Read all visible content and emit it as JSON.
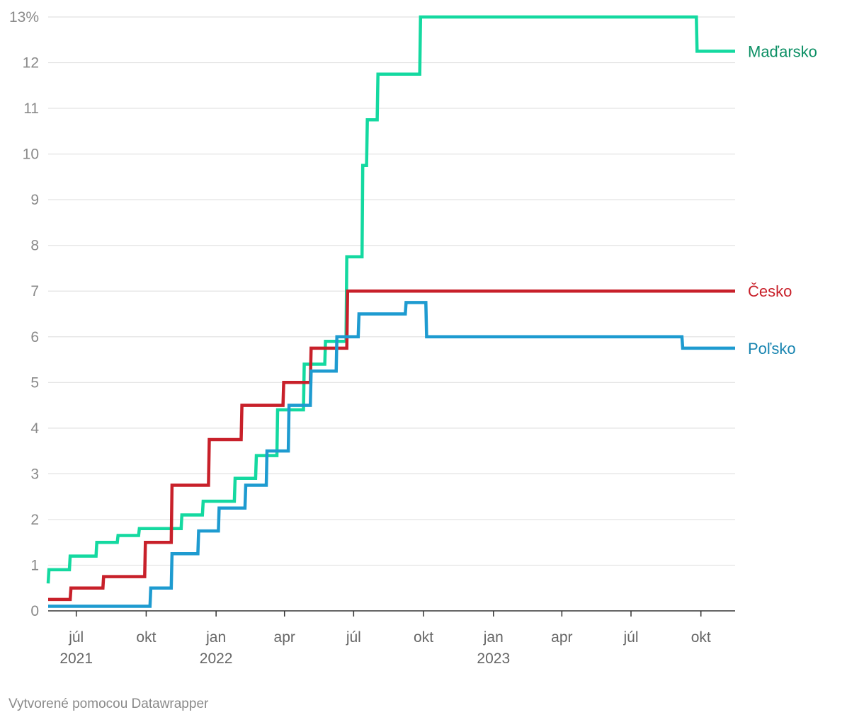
{
  "chart_data": {
    "type": "line",
    "step": true,
    "title": "",
    "xlabel": "",
    "ylabel": "",
    "y_unit_suffix": "%",
    "ylim": [
      0,
      13
    ],
    "yticks": [
      0,
      1,
      2,
      3,
      4,
      5,
      6,
      7,
      8,
      9,
      10,
      11,
      12,
      13
    ],
    "xlim": [
      "2021-05-25",
      "2023-11-15"
    ],
    "xticks": [
      {
        "date": "2021-07-01",
        "label": "júl",
        "year": "2021"
      },
      {
        "date": "2021-10-01",
        "label": "okt",
        "year": ""
      },
      {
        "date": "2022-01-01",
        "label": "jan",
        "year": "2022"
      },
      {
        "date": "2022-04-01",
        "label": "apr",
        "year": ""
      },
      {
        "date": "2022-07-01",
        "label": "júl",
        "year": ""
      },
      {
        "date": "2022-10-01",
        "label": "okt",
        "year": ""
      },
      {
        "date": "2023-01-01",
        "label": "jan",
        "year": "2023"
      },
      {
        "date": "2023-04-01",
        "label": "apr",
        "year": ""
      },
      {
        "date": "2023-07-01",
        "label": "júl",
        "year": ""
      },
      {
        "date": "2023-10-01",
        "label": "okt",
        "year": ""
      }
    ],
    "series": [
      {
        "name": "Maďarsko",
        "color": "#14d9a0",
        "label_color": "#0b8f64",
        "points": [
          [
            "2021-05-25",
            0.6
          ],
          [
            "2021-05-26",
            0.9
          ],
          [
            "2021-06-22",
            0.9
          ],
          [
            "2021-06-23",
            1.2
          ],
          [
            "2021-07-27",
            1.2
          ],
          [
            "2021-07-28",
            1.5
          ],
          [
            "2021-08-24",
            1.5
          ],
          [
            "2021-08-25",
            1.65
          ],
          [
            "2021-09-21",
            1.65
          ],
          [
            "2021-09-22",
            1.8
          ],
          [
            "2021-10-19",
            1.8
          ],
          [
            "2021-11-16",
            1.8
          ],
          [
            "2021-11-17",
            2.1
          ],
          [
            "2021-12-14",
            2.1
          ],
          [
            "2021-12-15",
            2.4
          ],
          [
            "2022-01-25",
            2.4
          ],
          [
            "2022-01-26",
            2.9
          ],
          [
            "2022-02-22",
            2.9
          ],
          [
            "2022-02-23",
            3.4
          ],
          [
            "2022-03-22",
            3.4
          ],
          [
            "2022-03-23",
            4.4
          ],
          [
            "2022-04-26",
            4.4
          ],
          [
            "2022-04-27",
            5.4
          ],
          [
            "2022-05-24",
            5.4
          ],
          [
            "2022-05-25",
            5.9
          ],
          [
            "2022-06-21",
            5.9
          ],
          [
            "2022-06-22",
            7.75
          ],
          [
            "2022-07-12",
            7.75
          ],
          [
            "2022-07-13",
            9.75
          ],
          [
            "2022-07-18",
            9.75
          ],
          [
            "2022-07-19",
            10.75
          ],
          [
            "2022-08-01",
            10.75
          ],
          [
            "2022-08-02",
            11.75
          ],
          [
            "2022-09-26",
            11.75
          ],
          [
            "2022-09-27",
            13.0
          ],
          [
            "2023-09-25",
            13.0
          ],
          [
            "2023-09-26",
            12.25
          ],
          [
            "2023-11-15",
            12.25
          ]
        ]
      },
      {
        "name": "Česko",
        "color": "#c8202a",
        "label_color": "#c8202a",
        "points": [
          [
            "2021-05-25",
            0.25
          ],
          [
            "2021-06-23",
            0.25
          ],
          [
            "2021-06-24",
            0.5
          ],
          [
            "2021-08-05",
            0.5
          ],
          [
            "2021-08-06",
            0.75
          ],
          [
            "2021-09-29",
            0.75
          ],
          [
            "2021-09-30",
            1.5
          ],
          [
            "2021-11-03",
            1.5
          ],
          [
            "2021-11-04",
            2.75
          ],
          [
            "2021-12-22",
            2.75
          ],
          [
            "2021-12-23",
            3.75
          ],
          [
            "2022-02-03",
            3.75
          ],
          [
            "2022-02-04",
            4.5
          ],
          [
            "2022-03-30",
            4.5
          ],
          [
            "2022-03-31",
            5.0
          ],
          [
            "2022-05-05",
            5.0
          ],
          [
            "2022-05-06",
            5.75
          ],
          [
            "2022-06-22",
            5.75
          ],
          [
            "2022-06-23",
            7.0
          ],
          [
            "2023-11-15",
            7.0
          ]
        ]
      },
      {
        "name": "Poľsko",
        "color": "#1e9bd0",
        "label_color": "#1784b0",
        "points": [
          [
            "2021-05-25",
            0.1
          ],
          [
            "2021-10-06",
            0.1
          ],
          [
            "2021-10-07",
            0.5
          ],
          [
            "2021-11-03",
            0.5
          ],
          [
            "2021-11-04",
            1.25
          ],
          [
            "2021-12-08",
            1.25
          ],
          [
            "2021-12-09",
            1.75
          ],
          [
            "2022-01-04",
            1.75
          ],
          [
            "2022-01-05",
            2.25
          ],
          [
            "2022-02-08",
            2.25
          ],
          [
            "2022-02-09",
            2.75
          ],
          [
            "2022-03-08",
            2.75
          ],
          [
            "2022-03-09",
            3.5
          ],
          [
            "2022-04-06",
            3.5
          ],
          [
            "2022-04-07",
            4.5
          ],
          [
            "2022-05-05",
            4.5
          ],
          [
            "2022-05-06",
            5.25
          ],
          [
            "2022-06-08",
            5.25
          ],
          [
            "2022-06-09",
            6.0
          ],
          [
            "2022-07-07",
            6.0
          ],
          [
            "2022-07-08",
            6.5
          ],
          [
            "2022-09-07",
            6.5
          ],
          [
            "2022-09-08",
            6.75
          ],
          [
            "2022-10-04",
            6.75
          ],
          [
            "2022-10-05",
            6.0
          ],
          [
            "2023-09-06",
            6.0
          ],
          [
            "2023-09-07",
            5.75
          ],
          [
            "2023-11-15",
            5.75
          ]
        ]
      }
    ]
  },
  "footer": {
    "credit": "Vytvorené pomocou Datawrapper"
  }
}
